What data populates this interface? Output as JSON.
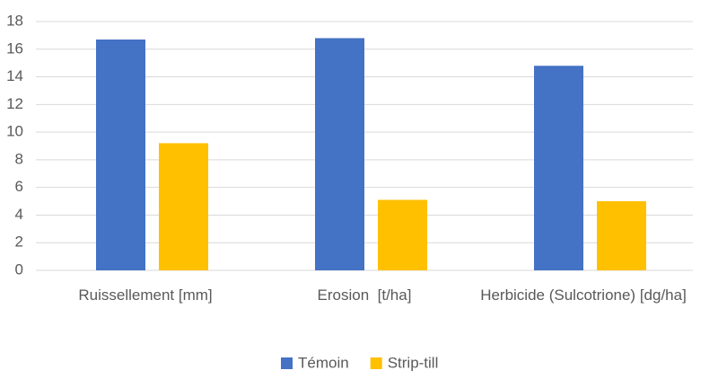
{
  "chart_data": {
    "type": "bar",
    "categories": [
      "Ruissellement [mm]",
      "Erosion  [t/ha]",
      "Herbicide (Sulcotrione) [dg/ha]"
    ],
    "series": [
      {
        "name": "Témoin",
        "color": "#4472c4",
        "values": [
          16.7,
          16.8,
          14.8
        ]
      },
      {
        "name": "Strip-till",
        "color": "#ffc000",
        "values": [
          9.2,
          5.1,
          5.0
        ]
      }
    ],
    "ylim": [
      0,
      18
    ],
    "yticks": [
      0,
      2,
      4,
      6,
      8,
      10,
      12,
      14,
      16,
      18
    ],
    "grid": true,
    "legend": "bottom"
  }
}
